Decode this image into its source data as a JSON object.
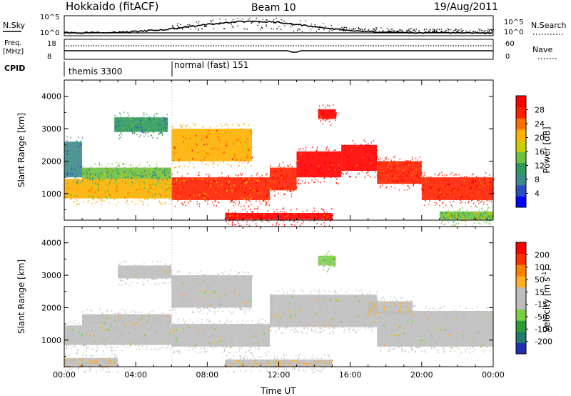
{
  "header": {
    "title": "Hokkaido (fitACF)",
    "beam": "Beam 10",
    "date": "19/Aug/2011"
  },
  "nsky_panel": {
    "left_label": "N.Sky",
    "right_label": "N.Search",
    "left_ticks": [
      "10^5",
      "10^0"
    ],
    "right_ticks": [
      "10^5",
      "10^0"
    ]
  },
  "freq_panel": {
    "left_label_1": "Freq.",
    "left_label_2": "[MHz]",
    "right_label": "Nave",
    "left_ticks": [
      "18",
      "8"
    ],
    "right_ticks": [
      "60",
      "0"
    ]
  },
  "cpid": {
    "label": "CPID",
    "segments": [
      {
        "name": "themis 3300",
        "start_hour": 0,
        "end_hour": 6.0
      },
      {
        "name": "normal (fast) 151",
        "start_hour": 6.0,
        "end_hour": 24
      }
    ]
  },
  "colors": {
    "power_scale": [
      "#0000ff",
      "#2a4dbf",
      "#3c8a8a",
      "#2e9a5a",
      "#6fc040",
      "#c8d000",
      "#ffb000",
      "#ff7000",
      "#ff2000",
      "#ff0000"
    ],
    "velocity_scale": [
      "#2030b0",
      "#1f7a6a",
      "#2e9a3a",
      "#7ad040",
      "#bebebe",
      "#bebebe",
      "#ffb020",
      "#ff8000",
      "#ff3000",
      "#ff0000"
    ]
  },
  "chart_data": [
    {
      "type": "heatmap",
      "quantity": "power",
      "xlabel": "",
      "ylabel": "Slant Range [km]",
      "xlim": [
        0,
        24
      ],
      "ylim": [
        180,
        4500
      ],
      "yticks": [
        1000,
        2000,
        3000,
        4000
      ],
      "colorbar": {
        "label": "Power [dB]",
        "ticks": [
          "4",
          "8",
          "12",
          "16",
          "20",
          "24",
          "28"
        ],
        "range": [
          0,
          30
        ]
      },
      "bands": [
        {
          "t0": 0.0,
          "t1": 6.0,
          "r_lo": 850,
          "r_hi": 1450,
          "value": 18
        },
        {
          "t0": 1.0,
          "t1": 6.0,
          "r_lo": 1450,
          "r_hi": 1800,
          "value": 12
        },
        {
          "t0": 0.0,
          "t1": 1.0,
          "r_lo": 1500,
          "r_hi": 2600,
          "value": 8
        },
        {
          "t0": 2.8,
          "t1": 5.8,
          "r_lo": 2900,
          "r_hi": 3350,
          "value": 9
        },
        {
          "t0": 6.0,
          "t1": 11.5,
          "r_lo": 800,
          "r_hi": 1500,
          "value": 24
        },
        {
          "t0": 11.5,
          "t1": 13.0,
          "r_lo": 1100,
          "r_hi": 1800,
          "value": 26
        },
        {
          "t0": 13.0,
          "t1": 15.5,
          "r_lo": 1500,
          "r_hi": 2300,
          "value": 28
        },
        {
          "t0": 15.5,
          "t1": 17.5,
          "r_lo": 1700,
          "r_hi": 2500,
          "value": 28
        },
        {
          "t0": 17.5,
          "t1": 20.0,
          "r_lo": 1300,
          "r_hi": 2000,
          "value": 26
        },
        {
          "t0": 20.0,
          "t1": 24.0,
          "r_lo": 800,
          "r_hi": 1500,
          "value": 26
        },
        {
          "t0": 6.0,
          "t1": 10.5,
          "r_lo": 2000,
          "r_hi": 3000,
          "value": 20
        },
        {
          "t0": 14.2,
          "t1": 15.2,
          "r_lo": 3300,
          "r_hi": 3600,
          "value": 28
        },
        {
          "t0": 9.0,
          "t1": 15.0,
          "r_lo": 200,
          "r_hi": 400,
          "value": 28
        },
        {
          "t0": 21.0,
          "t1": 24.0,
          "r_lo": 200,
          "r_hi": 450,
          "value": 14
        }
      ]
    },
    {
      "type": "heatmap",
      "quantity": "velocity",
      "xlabel": "Time UT",
      "ylabel": "Slant Range [km]",
      "xlim": [
        0,
        24
      ],
      "ylim": [
        180,
        4500
      ],
      "yticks": [
        1000,
        2000,
        3000,
        4000
      ],
      "xtick_labels": [
        "00:00",
        "04:00",
        "08:00",
        "12:00",
        "16:00",
        "20:00",
        "00:00"
      ],
      "colorbar": {
        "label": "Velocity [m s^-1]",
        "ticks": [
          "-200",
          "-100",
          "-50",
          "-15",
          "15",
          "50",
          "100",
          "200"
        ],
        "range": [
          -250,
          250
        ]
      },
      "bands": [
        {
          "t0": 0.0,
          "t1": 6.0,
          "r_lo": 850,
          "r_hi": 1450,
          "value": 0
        },
        {
          "t0": 1.0,
          "t1": 6.0,
          "r_lo": 1450,
          "r_hi": 1800,
          "value": 0
        },
        {
          "t0": 3.0,
          "t1": 6.0,
          "r_lo": 2900,
          "r_hi": 3300,
          "value": 0
        },
        {
          "t0": 6.0,
          "t1": 11.5,
          "r_lo": 800,
          "r_hi": 1500,
          "value": 0
        },
        {
          "t0": 11.5,
          "t1": 17.5,
          "r_lo": 1400,
          "r_hi": 2400,
          "value": 0
        },
        {
          "t0": 17.5,
          "t1": 24.0,
          "r_lo": 800,
          "r_hi": 1900,
          "value": 0
        },
        {
          "t0": 6.0,
          "t1": 10.5,
          "r_lo": 2000,
          "r_hi": 3000,
          "value": 0
        },
        {
          "t0": 14.2,
          "t1": 15.2,
          "r_lo": 3300,
          "r_hi": 3600,
          "value": -60
        },
        {
          "t0": 17.0,
          "t1": 19.5,
          "r_lo": 1800,
          "r_hi": 2200,
          "value": 40
        },
        {
          "t0": 9.0,
          "t1": 15.0,
          "r_lo": 200,
          "r_hi": 400,
          "value": 40
        },
        {
          "t0": 0.0,
          "t1": 3.0,
          "r_lo": 200,
          "r_hi": 450,
          "value": 40
        }
      ]
    }
  ]
}
